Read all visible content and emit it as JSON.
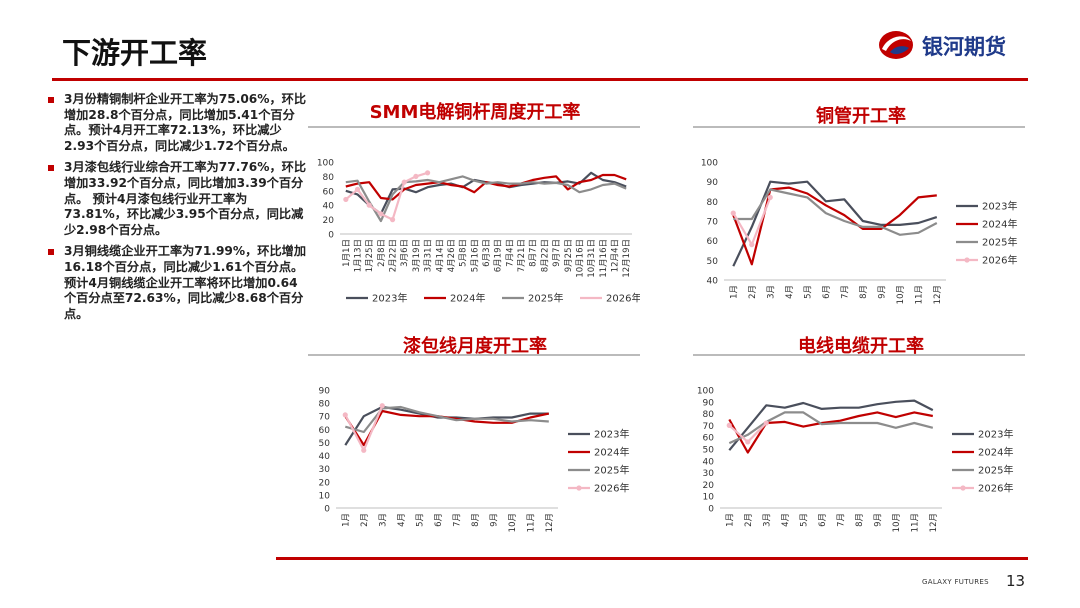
{
  "page": {
    "title": "下游开工率",
    "brand_name": "银河期货",
    "footer_brand": "GALAXY FUTURES",
    "page_number": "13",
    "accent_color": "#c00000"
  },
  "bullets": [
    "3月份精铜制杆企业开工率为75.06%，环比增加28.8个百分点，同比增加5.41个百分点。预计4月开工率72.13%，环比减少2.93个百分点，同比减少1.72个百分点。",
    "3月漆包线行业综合开工率为77.76%，环比增加33.92个百分点，同比增加3.39个百分点。 预计4月漆包线行业开工率为73.81%，环比减少3.95个百分点，同比减少2.98个百分点。",
    "3月铜线缆企业开工率为71.99%，环比增加16.18个百分点，同比减少1.61个百分点。预计4月铜线缆企业开工率将环比增加0.64个百分点至72.63%，同比减少8.68个百分点。"
  ],
  "chart_data": [
    {
      "id": "rod",
      "type": "line",
      "title": "SMM电解铜杆周度开工率",
      "x": [
        "1月1日",
        "1月13日",
        "1月25日",
        "2月8日",
        "2月22日",
        "3月6日",
        "3月19日",
        "3月31日",
        "4月14日",
        "4月26日",
        "5月8日",
        "5月16日",
        "6月3日",
        "6月19日",
        "7月4日",
        "7月21日",
        "8月7日",
        "8月22日",
        "9月7日",
        "9月25日",
        "10月16日",
        "10月31日",
        "11月16日",
        "12月4日",
        "12月19日"
      ],
      "ylim": [
        0,
        100
      ],
      "yticks": [
        0,
        20,
        40,
        60,
        80,
        100
      ],
      "legend_position": "bottom",
      "series": [
        {
          "name": "2023年",
          "color": "#4a4f5c",
          "values": [
            60,
            55,
            40,
            28,
            62,
            63,
            58,
            65,
            68,
            70,
            65,
            75,
            72,
            70,
            65,
            68,
            70,
            72,
            71,
            73,
            70,
            85,
            75,
            72,
            66
          ]
        },
        {
          "name": "2024年",
          "color": "#c00000",
          "values": [
            66,
            70,
            72,
            50,
            48,
            62,
            68,
            70,
            72,
            68,
            66,
            58,
            72,
            68,
            66,
            70,
            75,
            78,
            80,
            62,
            72,
            75,
            82,
            82,
            76
          ]
        },
        {
          "name": "2025年",
          "color": "#8c8c8c",
          "values": [
            72,
            74,
            45,
            18,
            55,
            72,
            73,
            75,
            72,
            76,
            80,
            74,
            70,
            72,
            70,
            70,
            72,
            70,
            71,
            68,
            58,
            62,
            68,
            70,
            63
          ]
        },
        {
          "name": "2026年",
          "color": "#f4b8c4",
          "values": [
            48,
            62,
            40,
            28,
            20,
            72,
            80,
            85,
            null,
            null,
            null,
            null,
            null,
            null,
            null,
            null,
            null,
            null,
            null,
            null,
            null,
            null,
            null,
            null,
            null
          ]
        }
      ]
    },
    {
      "id": "tube",
      "type": "line",
      "title": "铜管开工率",
      "x": [
        "1月",
        "2月",
        "3月",
        "4月",
        "5月",
        "6月",
        "7月",
        "8月",
        "9月",
        "10月",
        "11月",
        "12月"
      ],
      "ylim": [
        40,
        100
      ],
      "yticks": [
        40,
        50,
        60,
        70,
        80,
        90,
        100
      ],
      "legend_position": "right",
      "series": [
        {
          "name": "2023年",
          "color": "#4a4f5c",
          "values": [
            47,
            67,
            90,
            89,
            90,
            80,
            81,
            70,
            68,
            68,
            69,
            72
          ]
        },
        {
          "name": "2024年",
          "color": "#c00000",
          "values": [
            73,
            48,
            86,
            87,
            84,
            78,
            73,
            66,
            66,
            73,
            82,
            83
          ]
        },
        {
          "name": "2025年",
          "color": "#8c8c8c",
          "values": [
            71,
            71,
            86,
            84,
            82,
            74,
            70,
            67,
            67,
            63,
            64,
            69
          ]
        },
        {
          "name": "2026年",
          "color": "#f4b8c4",
          "values": [
            74,
            58,
            82,
            null,
            null,
            null,
            null,
            null,
            null,
            null,
            null,
            null
          ]
        }
      ]
    },
    {
      "id": "enamel",
      "type": "line",
      "title": "漆包线月度开工率",
      "x": [
        "1月",
        "2月",
        "3月",
        "4月",
        "5月",
        "6月",
        "7月",
        "8月",
        "9月",
        "10月",
        "11月",
        "12月"
      ],
      "ylim": [
        0,
        90
      ],
      "yticks": [
        0,
        10,
        20,
        30,
        40,
        50,
        60,
        70,
        80,
        90
      ],
      "legend_position": "right",
      "series": [
        {
          "name": "2023年",
          "color": "#4a4f5c",
          "values": [
            48,
            70,
            77,
            75,
            72,
            69,
            69,
            68,
            69,
            69,
            72,
            72
          ]
        },
        {
          "name": "2024年",
          "color": "#c00000",
          "values": [
            70,
            48,
            74,
            71,
            70,
            70,
            68,
            66,
            65,
            65,
            69,
            72
          ]
        },
        {
          "name": "2025年",
          "color": "#8c8c8c",
          "values": [
            62,
            58,
            76,
            77,
            73,
            70,
            67,
            68,
            68,
            66,
            67,
            66
          ]
        },
        {
          "name": "2026年",
          "color": "#f4b8c4",
          "values": [
            71,
            44,
            78,
            null,
            null,
            null,
            null,
            null,
            null,
            null,
            null,
            null
          ]
        }
      ]
    },
    {
      "id": "cable",
      "type": "line",
      "title": "电线电缆开工率",
      "x": [
        "1月",
        "2月",
        "3月",
        "4月",
        "5月",
        "6月",
        "7月",
        "8月",
        "9月",
        "10月",
        "11月",
        "12月"
      ],
      "ylim": [
        0,
        100
      ],
      "yticks": [
        0,
        10,
        20,
        30,
        40,
        50,
        60,
        70,
        80,
        90,
        100
      ],
      "legend_position": "right",
      "series": [
        {
          "name": "2023年",
          "color": "#4a4f5c",
          "values": [
            49,
            68,
            87,
            85,
            89,
            84,
            85,
            85,
            88,
            90,
            91,
            83
          ]
        },
        {
          "name": "2024年",
          "color": "#c00000",
          "values": [
            75,
            47,
            72,
            73,
            69,
            72,
            74,
            78,
            81,
            77,
            81,
            78
          ]
        },
        {
          "name": "2025年",
          "color": "#8c8c8c",
          "values": [
            55,
            62,
            73,
            81,
            81,
            71,
            72,
            72,
            72,
            68,
            72,
            68
          ]
        },
        {
          "name": "2026年",
          "color": "#f4b8c4",
          "values": [
            70,
            56,
            72,
            null,
            null,
            null,
            null,
            null,
            null,
            null,
            null,
            null
          ]
        }
      ]
    }
  ]
}
